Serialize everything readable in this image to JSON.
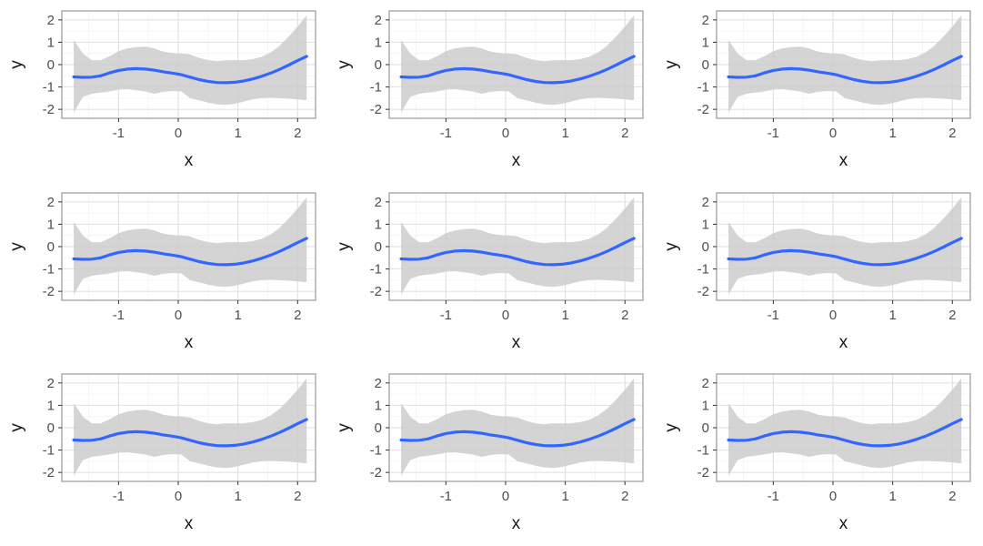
{
  "chart_data": {
    "type": "line",
    "layout": {
      "rows": 3,
      "cols": 3
    },
    "colors": {
      "line": "#3366ff",
      "ribbon": "#cccccc",
      "panel_border": "#9a9a9a",
      "grid_major": "#e3e3e3",
      "grid_minor": "#f2f2f2"
    },
    "xlabel": "x",
    "ylabel": "y",
    "xlim": [
      -1.95,
      2.3
    ],
    "ylim": [
      -2.4,
      2.4
    ],
    "x_ticks": [
      -1,
      0,
      1,
      2
    ],
    "x_tick_labels": [
      "-1",
      "0",
      "1",
      "2"
    ],
    "y_ticks": [
      -2,
      -1,
      0,
      1,
      2
    ],
    "y_tick_labels": [
      "-2",
      "-1",
      "0",
      "1",
      "2"
    ],
    "grid": true,
    "series": [
      {
        "x": [
          -1.75,
          -1.6,
          -1.45,
          -1.3,
          -1.15,
          -1.0,
          -0.85,
          -0.7,
          -0.55,
          -0.4,
          -0.25,
          -0.1,
          0.05,
          0.2,
          0.35,
          0.5,
          0.65,
          0.8,
          0.95,
          1.1,
          1.25,
          1.4,
          1.55,
          1.7,
          1.85,
          2.0,
          2.15
        ],
        "y": [
          -0.55,
          -0.57,
          -0.56,
          -0.5,
          -0.37,
          -0.26,
          -0.2,
          -0.18,
          -0.2,
          -0.25,
          -0.32,
          -0.38,
          -0.45,
          -0.56,
          -0.67,
          -0.75,
          -0.8,
          -0.81,
          -0.79,
          -0.73,
          -0.64,
          -0.52,
          -0.38,
          -0.21,
          -0.02,
          0.18,
          0.37
        ],
        "lower": [
          -2.15,
          -1.45,
          -1.3,
          -1.25,
          -1.2,
          -1.12,
          -1.1,
          -1.15,
          -1.2,
          -1.3,
          -1.22,
          -1.18,
          -1.2,
          -1.5,
          -1.6,
          -1.7,
          -1.78,
          -1.8,
          -1.75,
          -1.65,
          -1.55,
          -1.5,
          -1.48,
          -1.5,
          -1.52,
          -1.55,
          -1.6
        ],
        "upper": [
          1.1,
          0.5,
          0.2,
          0.2,
          0.38,
          0.6,
          0.72,
          0.78,
          0.8,
          0.72,
          0.58,
          0.52,
          0.5,
          0.45,
          0.3,
          0.2,
          0.15,
          0.2,
          0.2,
          0.2,
          0.25,
          0.35,
          0.55,
          0.85,
          1.25,
          1.7,
          2.2
        ]
      }
    ]
  }
}
